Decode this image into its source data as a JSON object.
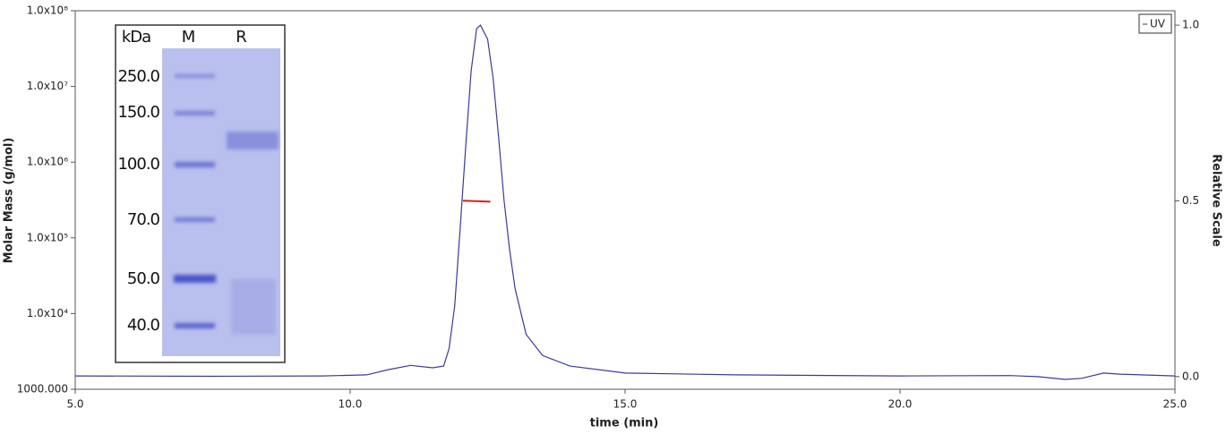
{
  "chart_data": {
    "type": "line",
    "xlabel": "time (min)",
    "ylabel": "Molar Mass (g/mol)",
    "y2label": "Relative Scale",
    "xlim": [
      5,
      25
    ],
    "xticks": [
      {
        "value": 5,
        "label": "5.0"
      },
      {
        "value": 10,
        "label": "10.0"
      },
      {
        "value": 15,
        "label": "15.0"
      },
      {
        "value": 20,
        "label": "20.0"
      },
      {
        "value": 25,
        "label": "25.0"
      }
    ],
    "ylim": [
      1000,
      100000000
    ],
    "yscale": "log",
    "yticks": [
      {
        "value": 1000,
        "label": "1000.000"
      },
      {
        "value": 10000,
        "label": "1.0x10⁴"
      },
      {
        "value": 100000,
        "label": "1.0x10⁵"
      },
      {
        "value": 1000000,
        "label": "1.0x10⁶"
      },
      {
        "value": 10000000,
        "label": "1.0x10⁷"
      },
      {
        "value": 100000000,
        "label": "1.0x10⁸"
      }
    ],
    "y2lim": [
      -0.036,
      1.041
    ],
    "y2ticks": [
      {
        "value": 0,
        "label": "0.0"
      },
      {
        "value": 0.5,
        "label": "0.5"
      },
      {
        "value": 1,
        "label": "1.0"
      }
    ],
    "legend": "top-right",
    "series": [
      {
        "name": "UV",
        "color": "#3a3a9a",
        "axis": "y2",
        "x": [
          5.0,
          7.5,
          9.5,
          10.3,
          10.7,
          11.1,
          11.5,
          11.7,
          11.8,
          11.9,
          12.0,
          12.1,
          12.2,
          12.3,
          12.37,
          12.5,
          12.6,
          12.7,
          12.8,
          12.9,
          13.0,
          13.2,
          13.5,
          14.0,
          15.0,
          17.0,
          20.0,
          22.0,
          22.5,
          23.0,
          23.3,
          23.7,
          24.0,
          25.0
        ],
        "values": [
          0.002,
          0.001,
          0.002,
          0.005,
          0.02,
          0.032,
          0.025,
          0.03,
          0.08,
          0.2,
          0.42,
          0.65,
          0.87,
          0.99,
          1.0,
          0.96,
          0.85,
          0.68,
          0.5,
          0.36,
          0.25,
          0.12,
          0.06,
          0.03,
          0.01,
          0.005,
          0.002,
          0.003,
          0.0,
          -0.008,
          -0.005,
          0.01,
          0.007,
          0.002
        ]
      },
      {
        "color": "#d62020",
        "axis": "y",
        "x": [
          12.05,
          12.55
        ],
        "values": [
          310000,
          300000
        ]
      }
    ]
  },
  "gel": {
    "header": [
      "kDa",
      "M",
      "R"
    ],
    "markers": [
      "250.0",
      "150.0",
      "100.0",
      "70.0",
      "50.0",
      "40.0"
    ]
  }
}
